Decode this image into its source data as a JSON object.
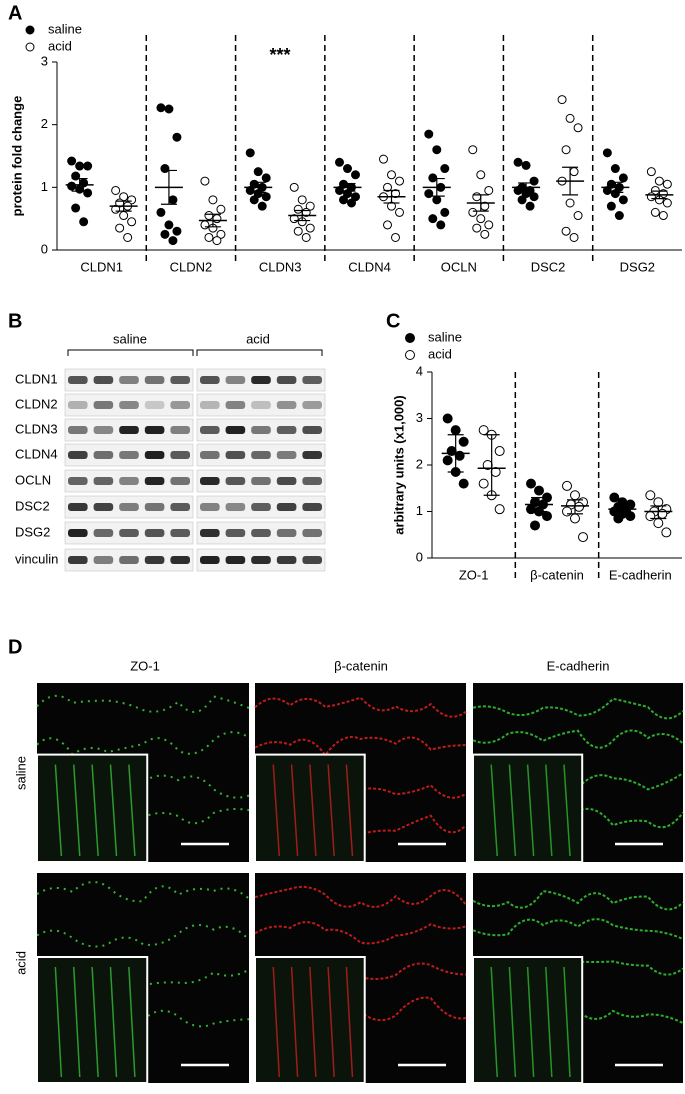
{
  "panel_labels": [
    "A",
    "B",
    "C",
    "D"
  ],
  "chart_data": [
    {
      "type": "dot",
      "ylabel": "protein fold change",
      "annotation": "***",
      "categories": [
        "CLDN1",
        "CLDN2",
        "CLDN3",
        "CLDN4",
        "OCLN",
        "DSC2",
        "DSG2"
      ],
      "ylim": [
        0,
        3
      ],
      "yticks": [
        0,
        1,
        2,
        3
      ],
      "series": [
        {
          "name": "saline",
          "color": "#000000",
          "marker": "filled",
          "values": [
            [
              1.42,
              1.34,
              1.34,
              1.18,
              1.07,
              1.02,
              0.97,
              0.91,
              0.67,
              0.45
            ],
            [
              2.27,
              2.25,
              1.8,
              1.3,
              0.8,
              0.6,
              0.4,
              0.3,
              0.25,
              0.15
            ],
            [
              1.55,
              1.25,
              1.15,
              1.05,
              1.0,
              0.95,
              0.9,
              0.85,
              0.8,
              0.7
            ],
            [
              1.4,
              1.3,
              1.2,
              1.05,
              1.0,
              0.95,
              0.9,
              0.85,
              0.8,
              0.75
            ],
            [
              1.85,
              1.6,
              1.3,
              1.15,
              1.0,
              0.9,
              0.8,
              0.6,
              0.5,
              0.4
            ],
            [
              1.4,
              1.35,
              1.1,
              1.0,
              0.95,
              0.95,
              0.9,
              0.85,
              0.8,
              0.7
            ],
            [
              1.55,
              1.3,
              1.15,
              1.05,
              1.0,
              0.95,
              0.9,
              0.8,
              0.7,
              0.55
            ]
          ],
          "center": [
            1.04,
            1.0,
            1.0,
            1.0,
            1.0,
            1.0,
            1.0
          ],
          "lower": [
            0.94,
            0.73,
            0.92,
            0.94,
            0.86,
            0.93,
            0.92
          ],
          "upper": [
            1.14,
            1.27,
            1.08,
            1.06,
            1.14,
            1.07,
            1.08
          ]
        },
        {
          "name": "acid",
          "color": "#000000",
          "marker": "open",
          "values": [
            [
              0.95,
              0.85,
              0.8,
              0.75,
              0.7,
              0.65,
              0.55,
              0.45,
              0.35,
              0.2
            ],
            [
              1.1,
              0.8,
              0.65,
              0.55,
              0.5,
              0.4,
              0.35,
              0.25,
              0.2,
              0.15
            ],
            [
              1.0,
              0.8,
              0.7,
              0.65,
              0.6,
              0.5,
              0.45,
              0.35,
              0.3,
              0.2
            ],
            [
              1.45,
              1.2,
              1.1,
              1.0,
              0.9,
              0.85,
              0.7,
              0.6,
              0.4,
              0.2
            ],
            [
              1.6,
              1.2,
              0.95,
              0.85,
              0.7,
              0.6,
              0.5,
              0.4,
              0.35,
              0.25
            ],
            [
              2.4,
              2.1,
              1.95,
              1.6,
              1.25,
              1.1,
              0.75,
              0.55,
              0.3,
              0.2
            ],
            [
              1.25,
              1.1,
              1.05,
              0.95,
              0.9,
              0.85,
              0.8,
              0.75,
              0.6,
              0.55
            ]
          ],
          "center": [
            0.7,
            0.47,
            0.55,
            0.85,
            0.75,
            1.1,
            0.88
          ],
          "lower": [
            0.62,
            0.37,
            0.47,
            0.75,
            0.62,
            0.88,
            0.82
          ],
          "upper": [
            0.78,
            0.57,
            0.63,
            0.95,
            0.88,
            1.32,
            0.94
          ]
        }
      ]
    },
    {
      "type": "dot",
      "ylabel": "arbitrary units (x1,000)",
      "categories": [
        "ZO-1",
        "β-catenin",
        "E-cadherin"
      ],
      "ylim": [
        0,
        4
      ],
      "yticks": [
        0,
        1,
        2,
        3,
        4
      ],
      "series": [
        {
          "name": "saline",
          "color": "#000000",
          "marker": "filled",
          "values": [
            [
              3.0,
              2.75,
              2.5,
              2.3,
              2.2,
              2.1,
              1.85,
              1.6
            ],
            [
              1.6,
              1.45,
              1.3,
              1.2,
              1.15,
              1.05,
              1.0,
              0.9,
              0.7
            ],
            [
              1.3,
              1.2,
              1.15,
              1.1,
              1.05,
              1.0,
              0.95,
              0.9,
              0.85
            ]
          ],
          "center": [
            2.25,
            1.15,
            1.05
          ],
          "lower": [
            1.85,
            1.0,
            0.95
          ],
          "upper": [
            2.65,
            1.3,
            1.15
          ]
        },
        {
          "name": "acid",
          "color": "#000000",
          "marker": "open",
          "values": [
            [
              2.75,
              2.65,
              2.3,
              2.0,
              1.85,
              1.6,
              1.35,
              1.05
            ],
            [
              1.55,
              1.35,
              1.2,
              1.15,
              1.1,
              1.0,
              0.85,
              0.45
            ],
            [
              1.35,
              1.2,
              1.05,
              1.0,
              0.95,
              0.9,
              0.75,
              0.55
            ]
          ],
          "center": [
            1.93,
            1.12,
            1.0
          ],
          "lower": [
            1.35,
            0.95,
            0.85
          ],
          "upper": [
            2.65,
            1.25,
            1.12
          ]
        }
      ]
    }
  ],
  "blot": {
    "groups": [
      "saline",
      "acid"
    ],
    "rows": [
      "CLDN1",
      "CLDN2",
      "CLDN3",
      "CLDN4",
      "OCLN",
      "DSC2",
      "DSG2",
      "vinculin"
    ]
  },
  "micrographs": {
    "columns": [
      "ZO-1",
      "β-catenin",
      "E-cadherin"
    ],
    "rows": [
      "saline",
      "acid"
    ]
  }
}
